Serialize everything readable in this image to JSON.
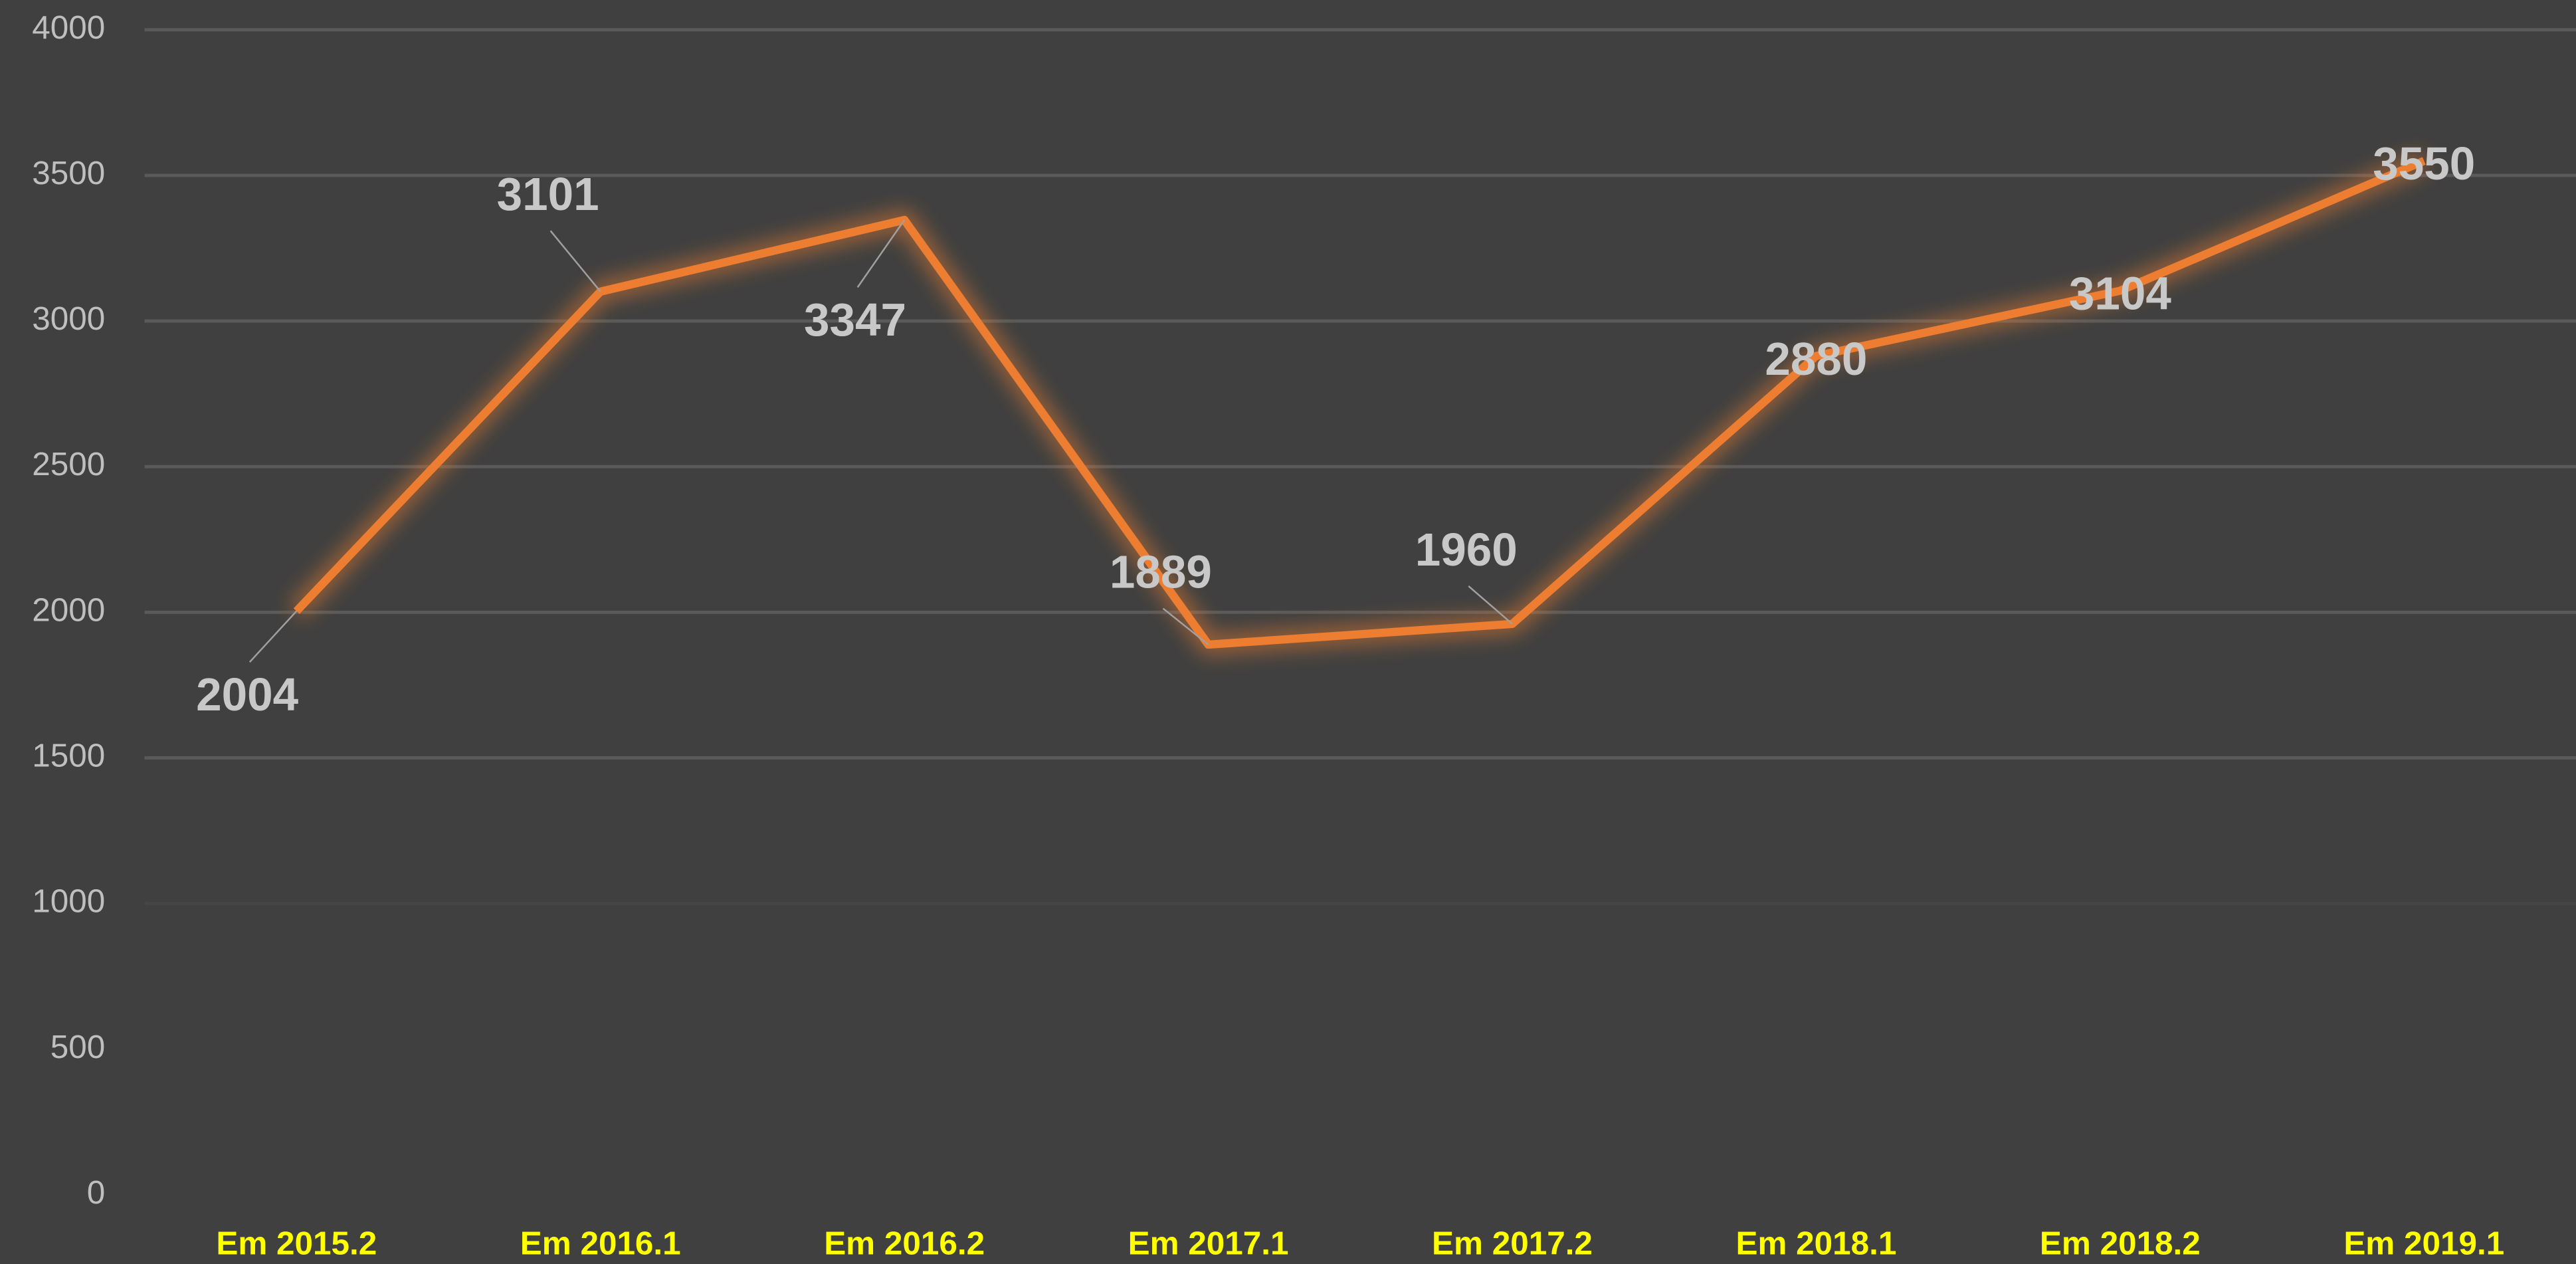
{
  "chart_data": {
    "type": "line",
    "categories": [
      "Em 2015.2",
      "Em 2016.1",
      "Em 2016.2",
      "Em 2017.1",
      "Em 2017.2",
      "Em 2018.1",
      "Em 2018.2",
      "Em 2019.1"
    ],
    "series": [
      {
        "color": "#ed7d31",
        "values": [
          2004,
          3101,
          3347,
          1889,
          1960,
          2880,
          3104,
          3550
        ]
      }
    ],
    "ylim": [
      0,
      4000
    ],
    "yticks": [
      0,
      500,
      1000,
      1500,
      2000,
      2500,
      3000,
      3500,
      4000
    ],
    "grid": true
  }
}
